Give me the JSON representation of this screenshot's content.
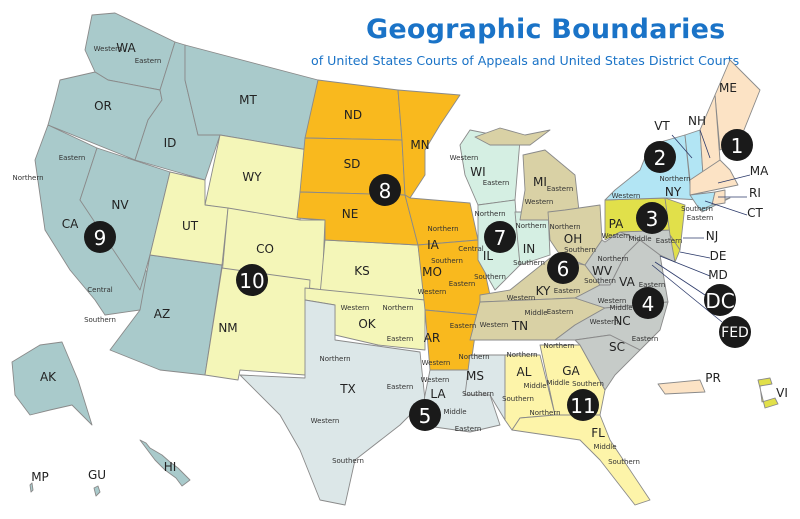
{
  "title": "Geographic Boundaries",
  "subtitle": "of United States Courts of Appeals and United States District Courts",
  "circuits": [
    {
      "label": "1",
      "color": "#fce3c5"
    },
    {
      "label": "2",
      "color": "#b2e5f4"
    },
    {
      "label": "3",
      "color": "#e1e04a"
    },
    {
      "label": "4",
      "color": "#c6cbc8"
    },
    {
      "label": "5",
      "color": "#dce7e8"
    },
    {
      "label": "6",
      "color": "#d9d1a5"
    },
    {
      "label": "7",
      "color": "#d5efe3"
    },
    {
      "label": "8",
      "color": "#f9b91e"
    },
    {
      "label": "9",
      "color": "#a9cacb"
    },
    {
      "label": "10",
      "color": "#f4f6b8"
    },
    {
      "label": "11",
      "color": "#fdf4a9"
    },
    {
      "label": "DC",
      "color": "#c6cbc8"
    },
    {
      "label": "FED",
      "color": "#c6cbc8"
    }
  ],
  "states": [
    {
      "abbr": "WA",
      "circuit": "9",
      "districts": [
        "Western",
        "Eastern"
      ]
    },
    {
      "abbr": "OR",
      "circuit": "9",
      "districts": []
    },
    {
      "abbr": "CA",
      "circuit": "9",
      "districts": [
        "Northern",
        "Eastern",
        "Central",
        "Southern"
      ]
    },
    {
      "abbr": "NV",
      "circuit": "9",
      "districts": []
    },
    {
      "abbr": "ID",
      "circuit": "9",
      "districts": []
    },
    {
      "abbr": "MT",
      "circuit": "9",
      "districts": []
    },
    {
      "abbr": "AZ",
      "circuit": "9",
      "districts": []
    },
    {
      "abbr": "AK",
      "circuit": "9",
      "districts": []
    },
    {
      "abbr": "HI",
      "circuit": "9",
      "districts": []
    },
    {
      "abbr": "GU",
      "circuit": "9",
      "districts": []
    },
    {
      "abbr": "MP",
      "circuit": "9",
      "districts": []
    },
    {
      "abbr": "WY",
      "circuit": "10",
      "districts": []
    },
    {
      "abbr": "UT",
      "circuit": "10",
      "districts": []
    },
    {
      "abbr": "CO",
      "circuit": "10",
      "districts": []
    },
    {
      "abbr": "NM",
      "circuit": "10",
      "districts": []
    },
    {
      "abbr": "KS",
      "circuit": "10",
      "districts": []
    },
    {
      "abbr": "OK",
      "circuit": "10",
      "districts": [
        "Western",
        "Northern",
        "Eastern"
      ]
    },
    {
      "abbr": "ND",
      "circuit": "8",
      "districts": []
    },
    {
      "abbr": "SD",
      "circuit": "8",
      "districts": []
    },
    {
      "abbr": "NE",
      "circuit": "8",
      "districts": []
    },
    {
      "abbr": "MN",
      "circuit": "8",
      "districts": []
    },
    {
      "abbr": "IA",
      "circuit": "8",
      "districts": [
        "Northern",
        "Southern"
      ]
    },
    {
      "abbr": "MO",
      "circuit": "8",
      "districts": [
        "Western",
        "Eastern"
      ]
    },
    {
      "abbr": "AR",
      "circuit": "8",
      "districts": [
        "Eastern",
        "Western"
      ]
    },
    {
      "abbr": "TX",
      "circuit": "5",
      "districts": [
        "Northern",
        "Eastern",
        "Western",
        "Southern"
      ]
    },
    {
      "abbr": "LA",
      "circuit": "5",
      "districts": [
        "Western",
        "Middle",
        "Eastern"
      ]
    },
    {
      "abbr": "MS",
      "circuit": "5",
      "districts": [
        "Northern",
        "Southern"
      ]
    },
    {
      "abbr": "WI",
      "circuit": "7",
      "districts": [
        "Western",
        "Eastern"
      ]
    },
    {
      "abbr": "IL",
      "circuit": "7",
      "districts": [
        "Northern",
        "Central",
        "Southern"
      ]
    },
    {
      "abbr": "IN",
      "circuit": "7",
      "districts": [
        "Northern",
        "Southern"
      ]
    },
    {
      "abbr": "MI",
      "circuit": "6",
      "districts": [
        "Eastern",
        "Western"
      ]
    },
    {
      "abbr": "OH",
      "circuit": "6",
      "districts": [
        "Northern",
        "Southern"
      ]
    },
    {
      "abbr": "KY",
      "circuit": "6",
      "districts": [
        "Western",
        "Eastern"
      ]
    },
    {
      "abbr": "TN",
      "circuit": "6",
      "districts": [
        "Western",
        "Middle",
        "Eastern"
      ]
    },
    {
      "abbr": "AL",
      "circuit": "11",
      "districts": [
        "Northern",
        "Middle",
        "Southern"
      ]
    },
    {
      "abbr": "GA",
      "circuit": "11",
      "districts": [
        "Northern",
        "Middle",
        "Southern"
      ]
    },
    {
      "abbr": "FL",
      "circuit": "11",
      "districts": [
        "Northern",
        "Middle",
        "Southern"
      ]
    },
    {
      "abbr": "WV",
      "circuit": "4",
      "districts": [
        "Northern",
        "Southern"
      ]
    },
    {
      "abbr": "VA",
      "circuit": "4",
      "districts": [
        "Eastern",
        "Western"
      ]
    },
    {
      "abbr": "NC",
      "circuit": "4",
      "districts": [
        "Middle",
        "Western",
        "Eastern"
      ]
    },
    {
      "abbr": "SC",
      "circuit": "4",
      "districts": []
    },
    {
      "abbr": "MD",
      "circuit": "4",
      "districts": []
    },
    {
      "abbr": "PA",
      "circuit": "3",
      "districts": [
        "Western",
        "Middle",
        "Eastern"
      ]
    },
    {
      "abbr": "NJ",
      "circuit": "3",
      "districts": []
    },
    {
      "abbr": "DE",
      "circuit": "3",
      "districts": []
    },
    {
      "abbr": "VI",
      "circuit": "3",
      "districts": []
    },
    {
      "abbr": "NY",
      "circuit": "2",
      "districts": [
        "Northern",
        "Western",
        "Southern",
        "Eastern"
      ]
    },
    {
      "abbr": "VT",
      "circuit": "2",
      "districts": []
    },
    {
      "abbr": "CT",
      "circuit": "2",
      "districts": []
    },
    {
      "abbr": "ME",
      "circuit": "1",
      "districts": []
    },
    {
      "abbr": "NH",
      "circuit": "1",
      "districts": []
    },
    {
      "abbr": "MA",
      "circuit": "1",
      "districts": []
    },
    {
      "abbr": "RI",
      "circuit": "1",
      "districts": []
    },
    {
      "abbr": "PR",
      "circuit": "1",
      "districts": []
    }
  ]
}
